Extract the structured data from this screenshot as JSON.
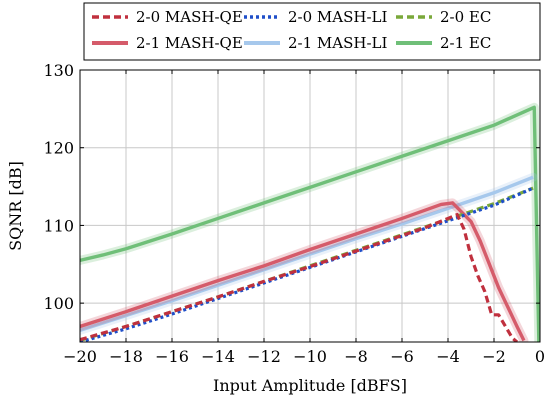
{
  "chart_data": {
    "type": "line",
    "xlabel": "Input Amplitude [dBFS]",
    "ylabel": "SQNR [dB]",
    "xlim": [
      -20,
      0
    ],
    "ylim": [
      95,
      130
    ],
    "xticks": [
      -20,
      -18,
      -16,
      -14,
      -12,
      -10,
      -8,
      -6,
      -4,
      -2,
      0
    ],
    "xtick_labels": [
      "−20",
      "−18",
      "−16",
      "−14",
      "−12",
      "−10",
      "−8",
      "−6",
      "−4",
      "−2",
      "0"
    ],
    "yticks": [
      100,
      110,
      120,
      130
    ],
    "ytick_labels": [
      "100",
      "110",
      "120",
      "130"
    ],
    "grid": true,
    "legend_position": "top, above plot",
    "series": [
      {
        "name": "2-0 MASH-QE",
        "color": "#c0303e",
        "style": "dashed",
        "x": [
          -20,
          -18,
          -16,
          -14,
          -12,
          -10,
          -8,
          -6,
          -5,
          -4,
          -3.6,
          -3.3,
          -3.0,
          -2.7,
          -2.4,
          -2.1,
          -1.8,
          -1.5,
          -1.2,
          -1.0
        ],
        "y": [
          95.3,
          97.0,
          98.9,
          100.8,
          102.8,
          104.7,
          106.7,
          108.7,
          109.7,
          110.9,
          111.4,
          109.5,
          106.0,
          103.5,
          101.5,
          98.5,
          98.5,
          97.0,
          95.5,
          95.0
        ]
      },
      {
        "name": "2-0 MASH-LI",
        "color": "#1f4fc9",
        "style": "dotted",
        "x": [
          -20,
          -18,
          -16,
          -14,
          -12,
          -10,
          -8,
          -6,
          -4,
          -2,
          -0.3
        ],
        "y": [
          95.0,
          96.7,
          98.6,
          100.6,
          102.6,
          104.6,
          106.6,
          108.6,
          110.6,
          112.6,
          114.8
        ]
      },
      {
        "name": "2-0 EC",
        "color": "#7aa83a",
        "style": "dashed",
        "x": [
          -20,
          -18,
          -16,
          -14,
          -12,
          -10,
          -8,
          -6,
          -4,
          -2,
          -0.3
        ],
        "y": [
          95.2,
          97.0,
          98.9,
          100.8,
          102.8,
          104.8,
          106.8,
          108.8,
          110.8,
          112.8,
          114.8
        ]
      },
      {
        "name": "2-1 MASH-QE",
        "color": "#d55b6a",
        "style": "solid",
        "x": [
          -20,
          -18,
          -16,
          -14,
          -12,
          -10,
          -8,
          -6,
          -4.3,
          -3.8,
          -3.3,
          -3.0,
          -2.6,
          -2.2,
          -1.8,
          -1.4,
          -1.0,
          -0.7
        ],
        "y": [
          97.0,
          98.9,
          100.9,
          102.9,
          104.8,
          106.9,
          108.9,
          110.9,
          112.7,
          112.9,
          111.4,
          110.5,
          108.0,
          105.0,
          102.0,
          99.5,
          97.0,
          95.2
        ]
      },
      {
        "name": "2-1 MASH-LI",
        "color": "#a6c8ec",
        "style": "solid",
        "x": [
          -20,
          -18,
          -16,
          -14,
          -12,
          -10,
          -8,
          -6,
          -4,
          -2,
          -0.3
        ],
        "y": [
          96.5,
          98.4,
          100.3,
          102.3,
          104.3,
          106.3,
          108.3,
          110.2,
          112.2,
          114.2,
          116.2
        ]
      },
      {
        "name": "2-1 EC",
        "color": "#6fbf78",
        "style": "solid",
        "x": [
          -20,
          -19,
          -18,
          -16,
          -14,
          -12,
          -10,
          -8,
          -6,
          -4,
          -2,
          -0.25,
          -0.15,
          -0.05
        ],
        "y": [
          105.5,
          106.2,
          107.0,
          108.9,
          110.9,
          112.9,
          114.9,
          116.9,
          118.9,
          120.9,
          122.9,
          125.2,
          110.0,
          95.0
        ]
      }
    ]
  }
}
